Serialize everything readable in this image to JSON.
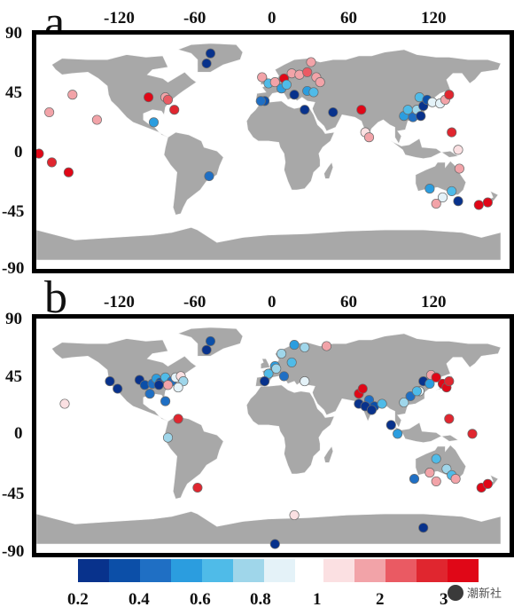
{
  "panels": [
    {
      "letter": "a",
      "x_ticks": [
        "-120",
        "-60",
        "0",
        "60",
        "120"
      ],
      "y_ticks": [
        "90",
        "45",
        "0",
        "-45",
        "-90"
      ],
      "points": [
        {
          "lon": -45,
          "lat": 75,
          "v": 0.25
        },
        {
          "lon": -48,
          "lat": 67,
          "v": 0.3
        },
        {
          "lon": -152,
          "lat": 42,
          "v": 1.2
        },
        {
          "lon": -170,
          "lat": 28,
          "v": 1.1
        },
        {
          "lon": -133,
          "lat": 22,
          "v": 1.05
        },
        {
          "lon": -93,
          "lat": 40,
          "v": 3.0
        },
        {
          "lon": -80,
          "lat": 40,
          "v": 1.4
        },
        {
          "lon": -78,
          "lat": 38,
          "v": 2.0
        },
        {
          "lon": -73,
          "lat": 30,
          "v": 2.4
        },
        {
          "lon": -89,
          "lat": 20,
          "v": 0.6
        },
        {
          "lon": -178,
          "lat": -5,
          "v": 2.6
        },
        {
          "lon": -168,
          "lat": -12,
          "v": 2.5
        },
        {
          "lon": -155,
          "lat": -20,
          "v": 2.6
        },
        {
          "lon": -46,
          "lat": -23,
          "v": 0.45
        },
        {
          "lon": -5,
          "lat": 56,
          "v": 1.2
        },
        {
          "lon": 0,
          "lat": 51,
          "v": 0.7
        },
        {
          "lon": 5,
          "lat": 52,
          "v": 1.3
        },
        {
          "lon": 12,
          "lat": 55,
          "v": 2.6
        },
        {
          "lon": 18,
          "lat": 59,
          "v": 1.5
        },
        {
          "lon": 10,
          "lat": 47,
          "v": 0.6
        },
        {
          "lon": 14,
          "lat": 50,
          "v": 0.65
        },
        {
          "lon": 24,
          "lat": 58,
          "v": 1.1
        },
        {
          "lon": 33,
          "lat": 68,
          "v": 1.2
        },
        {
          "lon": 37,
          "lat": 56,
          "v": 1.3
        },
        {
          "lon": 30,
          "lat": 60,
          "v": 1.6
        },
        {
          "lon": 40,
          "lat": 52,
          "v": 1.2
        },
        {
          "lon": -3,
          "lat": 37,
          "v": 0.4
        },
        {
          "lon": -6,
          "lat": 37,
          "v": 0.45
        },
        {
          "lon": 30,
          "lat": 45,
          "v": 0.55
        },
        {
          "lon": 20,
          "lat": 42,
          "v": 0.3
        },
        {
          "lon": 35,
          "lat": 44,
          "v": 0.7
        },
        {
          "lon": 28,
          "lat": 30,
          "v": 0.3
        },
        {
          "lon": 50,
          "lat": 28,
          "v": 0.25
        },
        {
          "lon": 72,
          "lat": 30,
          "v": 3.0
        },
        {
          "lon": 75,
          "lat": 12,
          "v": 1.0
        },
        {
          "lon": 78,
          "lat": 8,
          "v": 1.1
        },
        {
          "lon": 105,
          "lat": 25,
          "v": 0.6
        },
        {
          "lon": 108,
          "lat": 30,
          "v": 0.7
        },
        {
          "lon": 112,
          "lat": 24,
          "v": 0.5
        },
        {
          "lon": 115,
          "lat": 30,
          "v": 0.8
        },
        {
          "lon": 118,
          "lat": 25,
          "v": 0.25
        },
        {
          "lon": 120,
          "lat": 33,
          "v": 0.2
        },
        {
          "lon": 117,
          "lat": 40,
          "v": 0.7
        },
        {
          "lon": 123,
          "lat": 38,
          "v": 0.35
        },
        {
          "lon": 127,
          "lat": 36,
          "v": 0.85
        },
        {
          "lon": 133,
          "lat": 35,
          "v": 0.9
        },
        {
          "lon": 137,
          "lat": 38,
          "v": 1.2
        },
        {
          "lon": 140,
          "lat": 42,
          "v": 2.4
        },
        {
          "lon": 142,
          "lat": 12,
          "v": 2.4
        },
        {
          "lon": 147,
          "lat": -2,
          "v": 1.0
        },
        {
          "lon": 148,
          "lat": -17,
          "v": 1.1
        },
        {
          "lon": 142,
          "lat": -35,
          "v": 0.7
        },
        {
          "lon": 147,
          "lat": -43,
          "v": 0.25
        },
        {
          "lon": 135,
          "lat": -40,
          "v": 0.9
        },
        {
          "lon": 130,
          "lat": -45,
          "v": 1.2
        },
        {
          "lon": 125,
          "lat": -33,
          "v": 0.6
        },
        {
          "lon": 163,
          "lat": -46,
          "v": 2.8
        },
        {
          "lon": 170,
          "lat": -44,
          "v": 2.9
        }
      ]
    },
    {
      "letter": "b",
      "x_ticks": [
        "-120",
        "-60",
        "0",
        "60",
        "120"
      ],
      "y_ticks": [
        "90",
        "45",
        "0",
        "-45",
        "-90"
      ],
      "points": [
        {
          "lon": -45,
          "lat": 72,
          "v": 0.35
        },
        {
          "lon": -48,
          "lat": 65,
          "v": 0.3
        },
        {
          "lon": -158,
          "lat": 22,
          "v": 0.95
        },
        {
          "lon": -123,
          "lat": 40,
          "v": 0.25
        },
        {
          "lon": -117,
          "lat": 34,
          "v": 0.2
        },
        {
          "lon": -100,
          "lat": 41,
          "v": 0.3
        },
        {
          "lon": -96,
          "lat": 37,
          "v": 0.4
        },
        {
          "lon": -90,
          "lat": 38,
          "v": 0.45
        },
        {
          "lon": -87,
          "lat": 42,
          "v": 0.6
        },
        {
          "lon": -84,
          "lat": 39,
          "v": 0.35
        },
        {
          "lon": -80,
          "lat": 43,
          "v": 0.7
        },
        {
          "lon": -75,
          "lat": 40,
          "v": 0.5
        },
        {
          "lon": -72,
          "lat": 43,
          "v": 0.9
        },
        {
          "lon": -68,
          "lat": 44,
          "v": 1.0
        },
        {
          "lon": -92,
          "lat": 30,
          "v": 0.45
        },
        {
          "lon": -66,
          "lat": 40,
          "v": 0.8
        },
        {
          "lon": -70,
          "lat": 35,
          "v": 0.85
        },
        {
          "lon": -78,
          "lat": 37,
          "v": 1.1
        },
        {
          "lon": -85,
          "lat": 37,
          "v": 0.3
        },
        {
          "lon": -80,
          "lat": 24,
          "v": 0.5
        },
        {
          "lon": -70,
          "lat": 10,
          "v": 2.5
        },
        {
          "lon": -78,
          "lat": -5,
          "v": 0.75
        },
        {
          "lon": -55,
          "lat": -45,
          "v": 2.3
        },
        {
          "lon": 5,
          "lat": -90,
          "v": 0.2
        },
        {
          "lon": 20,
          "lat": 69,
          "v": 0.6
        },
        {
          "lon": 28,
          "lat": 67,
          "v": 0.8
        },
        {
          "lon": 10,
          "lat": 62,
          "v": 0.75
        },
        {
          "lon": 18,
          "lat": 55,
          "v": 0.7
        },
        {
          "lon": 5,
          "lat": 52,
          "v": 0.55
        },
        {
          "lon": 0,
          "lat": 46,
          "v": 0.65
        },
        {
          "lon": 6,
          "lat": 50,
          "v": 0.8
        },
        {
          "lon": 12,
          "lat": 44,
          "v": 0.5
        },
        {
          "lon": -3,
          "lat": 40,
          "v": 0.25
        },
        {
          "lon": 28,
          "lat": 40,
          "v": 0.85
        },
        {
          "lon": 20,
          "lat": -67,
          "v": 1.0
        },
        {
          "lon": 45,
          "lat": 68,
          "v": 1.1
        },
        {
          "lon": 70,
          "lat": 30,
          "v": 2.6
        },
        {
          "lon": 73,
          "lat": 34,
          "v": 3.0
        },
        {
          "lon": 78,
          "lat": 25,
          "v": 0.45
        },
        {
          "lon": 70,
          "lat": 22,
          "v": 0.3
        },
        {
          "lon": 75,
          "lat": 20,
          "v": 0.25
        },
        {
          "lon": 82,
          "lat": 20,
          "v": 0.35
        },
        {
          "lon": 80,
          "lat": 17,
          "v": 0.2
        },
        {
          "lon": 88,
          "lat": 22,
          "v": 0.7
        },
        {
          "lon": 105,
          "lat": 23,
          "v": 0.75
        },
        {
          "lon": 110,
          "lat": 28,
          "v": 0.5
        },
        {
          "lon": 117,
          "lat": 32,
          "v": 0.85
        },
        {
          "lon": 120,
          "lat": 40,
          "v": 0.25
        },
        {
          "lon": 125,
          "lat": 38,
          "v": 0.6
        },
        {
          "lon": 126,
          "lat": 45,
          "v": 1.1
        },
        {
          "lon": 130,
          "lat": 43,
          "v": 2.8
        },
        {
          "lon": 135,
          "lat": 38,
          "v": 2.9
        },
        {
          "lon": 138,
          "lat": 35,
          "v": 2.7
        },
        {
          "lon": 140,
          "lat": 40,
          "v": 2.5
        },
        {
          "lon": 115,
          "lat": 32,
          "v": 0.7
        },
        {
          "lon": 140,
          "lat": 10,
          "v": 2.3
        },
        {
          "lon": 100,
          "lat": -2,
          "v": 0.6
        },
        {
          "lon": 95,
          "lat": 5,
          "v": 0.3
        },
        {
          "lon": 130,
          "lat": -22,
          "v": 0.65
        },
        {
          "lon": 138,
          "lat": -30,
          "v": 0.8
        },
        {
          "lon": 142,
          "lat": -35,
          "v": 0.7
        },
        {
          "lon": 125,
          "lat": -33,
          "v": 1.4
        },
        {
          "lon": 113,
          "lat": -38,
          "v": 0.45
        },
        {
          "lon": 130,
          "lat": -40,
          "v": 1.2
        },
        {
          "lon": 145,
          "lat": -38,
          "v": 1.05
        },
        {
          "lon": 165,
          "lat": -45,
          "v": 2.7
        },
        {
          "lon": 170,
          "lat": -42,
          "v": 3.0
        },
        {
          "lon": 158,
          "lat": -2,
          "v": 2.1
        },
        {
          "lon": 120,
          "lat": -77,
          "v": 0.3
        }
      ]
    }
  ],
  "colorbar": {
    "colors": [
      "#08328c",
      "#0c4fa8",
      "#1f6fc4",
      "#2b9ddf",
      "#4fbbe8",
      "#9fd6ea",
      "#e4f2f8",
      "#fbe0e2",
      "#f2a3a8",
      "#ea5a63",
      "#e0262f",
      "#e00717"
    ],
    "labels": [
      "0.2",
      "0.4",
      "0.6",
      "0.8",
      "1",
      "2",
      "3"
    ]
  },
  "watermark": "潮新社"
}
